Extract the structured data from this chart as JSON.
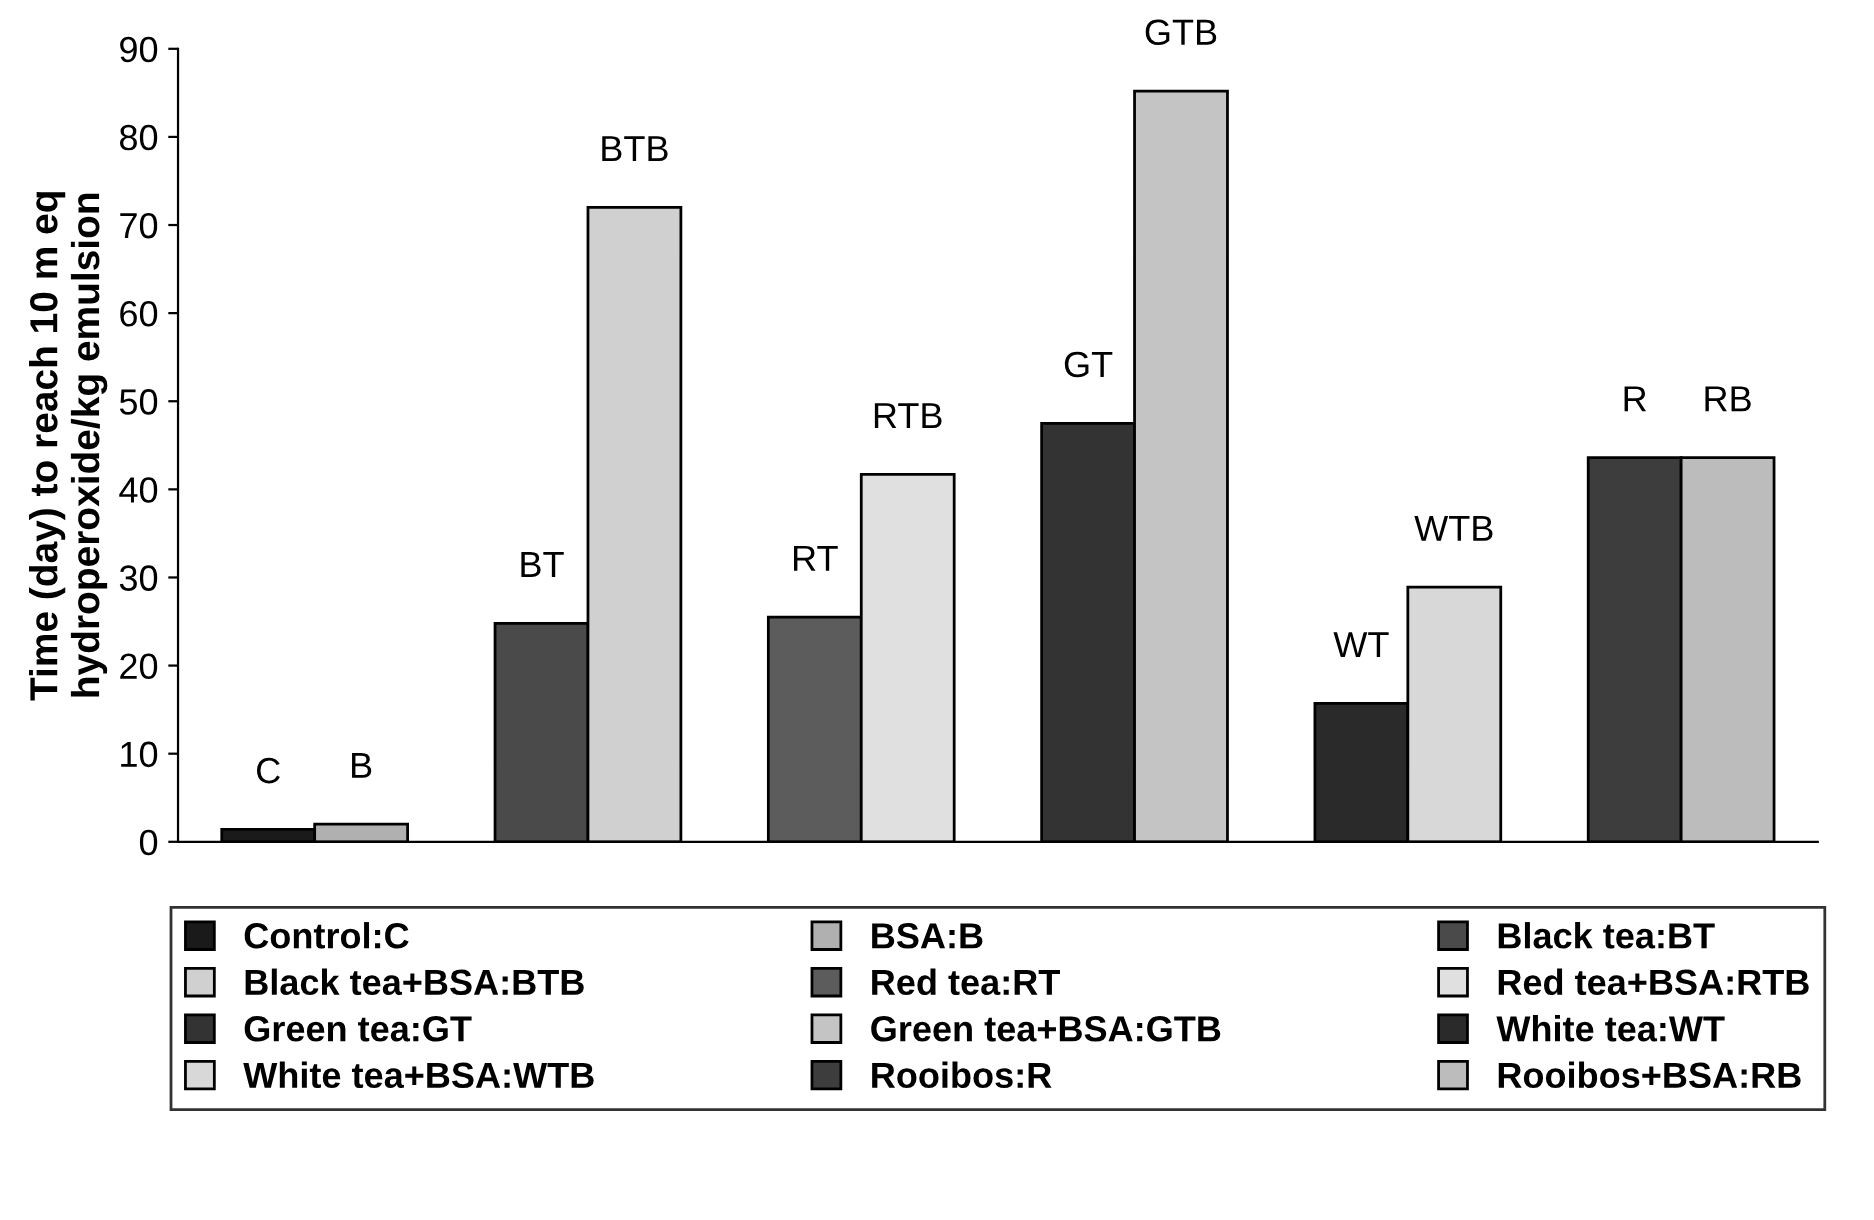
{
  "chart_data": {
    "type": "bar",
    "ylabel": "Time (day) to reach 10 m eq\nhydroperoxide/kg emulsion",
    "categories": [
      null,
      null,
      null,
      null,
      null,
      null
    ],
    "series": [
      {
        "name": "Control:C",
        "color": "#1a1a1a",
        "values": [
          1.4,
          null,
          null,
          null,
          null,
          null
        ],
        "value_labels": [
          "C",
          null,
          null,
          null,
          null,
          null
        ]
      },
      {
        "name": "BSA:B",
        "color": "#b0b0b0",
        "values": [
          2.0,
          null,
          null,
          null,
          null,
          null
        ],
        "value_labels": [
          "B",
          null,
          null,
          null,
          null,
          null
        ]
      },
      {
        "name": "Black tea:BT",
        "color": "#4a4a4a",
        "values": [
          null,
          24.8,
          null,
          null,
          null,
          null
        ],
        "value_labels": [
          null,
          "BT",
          null,
          null,
          null,
          null
        ]
      },
      {
        "name": "Black tea+BSA:BTB",
        "color": "#d0d0d0",
        "values": [
          null,
          72.0,
          null,
          null,
          null,
          null
        ],
        "value_labels": [
          null,
          "BTB",
          null,
          null,
          null,
          null
        ]
      },
      {
        "name": "Red tea:RT",
        "color": "#5c5c5c",
        "values": [
          null,
          null,
          25.5,
          null,
          null,
          null
        ],
        "value_labels": [
          null,
          null,
          "RT",
          null,
          null,
          null
        ]
      },
      {
        "name": "Red tea+BSA:RTB",
        "color": "#e0e0e0",
        "values": [
          null,
          null,
          41.7,
          null,
          null,
          null
        ],
        "value_labels": [
          null,
          null,
          "RTB",
          null,
          null,
          null
        ]
      },
      {
        "name": "Green tea:GT",
        "color": "#333333",
        "values": [
          null,
          null,
          null,
          47.5,
          null,
          null
        ],
        "value_labels": [
          null,
          null,
          null,
          "GT",
          null,
          null
        ]
      },
      {
        "name": "Green tea+BSA:GTB",
        "color": "#c4c4c4",
        "values": [
          null,
          null,
          null,
          85.2,
          null,
          null
        ],
        "value_labels": [
          null,
          null,
          null,
          "GTB",
          null,
          null
        ]
      },
      {
        "name": "White tea:WT",
        "color": "#2a2a2a",
        "values": [
          null,
          null,
          null,
          null,
          15.7,
          null
        ],
        "value_labels": [
          null,
          null,
          null,
          null,
          "WT",
          null
        ]
      },
      {
        "name": "White tea+BSA:WTB",
        "color": "#d8d8d8",
        "values": [
          null,
          null,
          null,
          null,
          28.9,
          null
        ],
        "value_labels": [
          null,
          null,
          null,
          null,
          "WTB",
          null
        ]
      },
      {
        "name": "Rooibos:R",
        "color": "#3d3d3d",
        "values": [
          null,
          null,
          null,
          null,
          null,
          43.6
        ],
        "value_labels": [
          null,
          null,
          null,
          null,
          null,
          "R"
        ]
      },
      {
        "name": "Rooibos+BSA:RB",
        "color": "#bcbcbc",
        "values": [
          null,
          null,
          null,
          null,
          null,
          43.6
        ],
        "value_labels": [
          null,
          null,
          null,
          null,
          null,
          "RB"
        ]
      }
    ],
    "ylim": [
      0,
      90
    ],
    "yticks": [
      0,
      10,
      20,
      30,
      40,
      50,
      60,
      70,
      80,
      90
    ],
    "legend": "bottom"
  }
}
